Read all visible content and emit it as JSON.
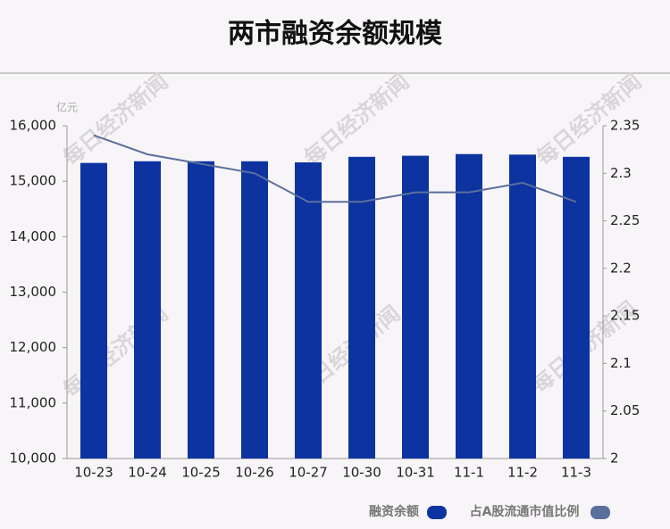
{
  "chart_data": {
    "type": "bar-line",
    "title": "两市融资余额规模",
    "y_unit": "亿元",
    "watermark": "每日经济新闻",
    "categories": [
      "10-23",
      "10-24",
      "10-25",
      "10-26",
      "10-27",
      "10-30",
      "10-31",
      "11-1",
      "11-2",
      "11-3"
    ],
    "series": [
      {
        "name": "融资余额",
        "type": "bar",
        "color": "#0c33a0",
        "values": [
          15330,
          15360,
          15360,
          15360,
          15340,
          15440,
          15460,
          15490,
          15480,
          15440
        ]
      },
      {
        "name": "占A股流通市值比例",
        "type": "line",
        "axis": "y2",
        "color": "#5a6f9c",
        "values": [
          2.34,
          2.32,
          2.31,
          2.3,
          2.27,
          2.27,
          2.28,
          2.28,
          2.29,
          2.27
        ]
      }
    ],
    "ylim": [
      10000,
      16000
    ],
    "yticks": [
      {
        "value": 10000,
        "label": "10,000"
      },
      {
        "value": 11000,
        "label": "11,000"
      },
      {
        "value": 12000,
        "label": "12,000"
      },
      {
        "value": 13000,
        "label": "13,000"
      },
      {
        "value": 14000,
        "label": "14,000"
      },
      {
        "value": 15000,
        "label": "15,000"
      },
      {
        "value": 16000,
        "label": "16,000"
      }
    ],
    "y2lim": [
      2,
      2.35
    ],
    "y2ticks": [
      2,
      2.05,
      2.1,
      2.15,
      2.2,
      2.25,
      2.3,
      2.35
    ],
    "legend": "bottom-right",
    "grid": false
  }
}
